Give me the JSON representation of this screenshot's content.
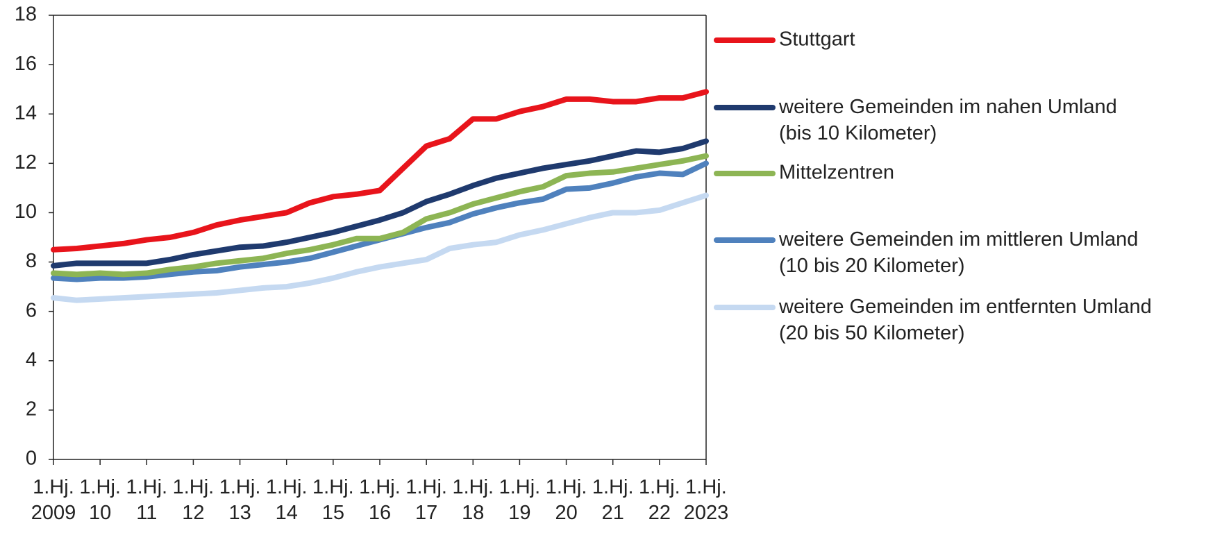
{
  "chart_data": {
    "type": "line",
    "categories": [
      "1.Hj. 2009",
      null,
      "1.Hj. 10",
      null,
      "1.Hj. 11",
      null,
      "1.Hj. 12",
      null,
      "1.Hj. 13",
      null,
      "1.Hj. 14",
      null,
      "1.Hj. 15",
      null,
      "1.Hj. 16",
      null,
      "1.Hj. 17",
      null,
      "1.Hj. 18",
      null,
      "1.Hj. 19",
      null,
      "1.Hj. 20",
      null,
      "1.Hj. 21",
      null,
      "1.Hj. 22",
      null,
      "1.Hj. 2023"
    ],
    "series": [
      {
        "name": "Stuttgart",
        "color": "#e8141b",
        "values": [
          8.5,
          8.55,
          8.65,
          8.75,
          8.9,
          9.0,
          9.2,
          9.5,
          9.7,
          9.85,
          10.0,
          10.4,
          10.65,
          10.75,
          10.9,
          11.8,
          12.7,
          13.0,
          13.8,
          13.8,
          14.1,
          14.3,
          14.6,
          14.6,
          14.5,
          14.5,
          14.65,
          14.65,
          14.9
        ]
      },
      {
        "name": "weitere Gemeinden im nahen Umland (bis 10 Kilometer)",
        "color": "#1f3a6e",
        "values": [
          7.85,
          7.95,
          7.95,
          7.95,
          7.95,
          8.1,
          8.3,
          8.45,
          8.6,
          8.65,
          8.8,
          9.0,
          9.2,
          9.45,
          9.7,
          10.0,
          10.45,
          10.75,
          11.1,
          11.4,
          11.6,
          11.8,
          11.95,
          12.1,
          12.3,
          12.5,
          12.45,
          12.6,
          12.9
        ]
      },
      {
        "name": "Mittelzentren",
        "color": "#8db554",
        "values": [
          7.55,
          7.5,
          7.55,
          7.5,
          7.55,
          7.7,
          7.8,
          7.95,
          8.05,
          8.15,
          8.35,
          8.5,
          8.7,
          8.95,
          8.95,
          9.2,
          9.75,
          10.0,
          10.35,
          10.6,
          10.85,
          11.05,
          11.5,
          11.6,
          11.65,
          11.8,
          11.95,
          12.1,
          12.3
        ]
      },
      {
        "name": "weitere Gemeinden im mittleren Umland (10 bis 20 Kilometer)",
        "color": "#4f81bd",
        "values": [
          7.35,
          7.3,
          7.35,
          7.35,
          7.4,
          7.5,
          7.6,
          7.65,
          7.8,
          7.9,
          8.0,
          8.15,
          8.4,
          8.65,
          8.9,
          9.15,
          9.4,
          9.6,
          9.95,
          10.2,
          10.4,
          10.55,
          10.95,
          11.0,
          11.2,
          11.45,
          11.6,
          11.55,
          12.0
        ]
      },
      {
        "name": "weitere Gemeinden im entfernten Umland (20 bis 50 Kilometer)",
        "color": "#c5d9f1",
        "values": [
          6.55,
          6.45,
          6.5,
          6.55,
          6.6,
          6.65,
          6.7,
          6.75,
          6.85,
          6.95,
          7.0,
          7.15,
          7.35,
          7.6,
          7.8,
          7.95,
          8.1,
          8.55,
          8.7,
          8.8,
          9.1,
          9.3,
          9.55,
          9.8,
          10.0,
          10.0,
          10.1,
          10.4,
          10.7
        ]
      }
    ],
    "ylim": [
      0,
      18
    ],
    "yticks": [
      0,
      2,
      4,
      6,
      8,
      10,
      12,
      14,
      16,
      18
    ],
    "grid": false,
    "legend": "right"
  }
}
